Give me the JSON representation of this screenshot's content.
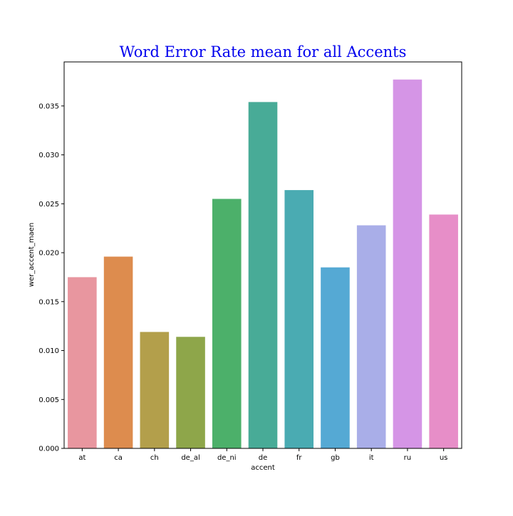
{
  "chart_data": {
    "type": "bar",
    "title": "Word Error Rate mean for all Accents",
    "xlabel": "accent",
    "ylabel": "wer_accent_maen",
    "categories": [
      "at",
      "ca",
      "ch",
      "de_al",
      "de_ni",
      "de",
      "fr",
      "gb",
      "it",
      "ru",
      "us"
    ],
    "values": [
      0.0175,
      0.0196,
      0.0119,
      0.0114,
      0.0255,
      0.0354,
      0.0264,
      0.0185,
      0.0228,
      0.0377,
      0.0239
    ],
    "colors": [
      "#e8969f",
      "#dd8c4e",
      "#b39f4b",
      "#8ea64a",
      "#4cb06a",
      "#48ab97",
      "#4aabb2",
      "#55a9d4",
      "#a9aee8",
      "#d595e6",
      "#e78ec8"
    ],
    "ylim": [
      0,
      0.0395
    ],
    "yticks": [
      "0.000",
      "0.005",
      "0.010",
      "0.015",
      "0.020",
      "0.025",
      "0.030",
      "0.035"
    ],
    "title_color": "#0000ee",
    "grid": false,
    "legend": "none"
  }
}
